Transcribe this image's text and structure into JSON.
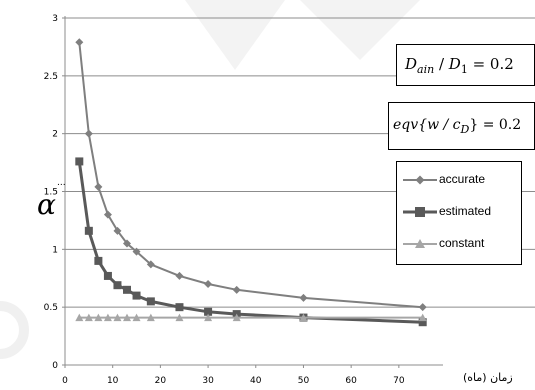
{
  "chart_data": {
    "type": "line",
    "xticks": [
      0,
      10,
      20,
      30,
      40,
      50,
      60,
      70
    ],
    "yticks": [
      "0",
      "0.5",
      "1",
      "1.5",
      "2",
      "2.5",
      "3"
    ],
    "xlim": [
      0,
      78
    ],
    "ylim": [
      0,
      3
    ],
    "grid": "horizontal",
    "legend_position": "right",
    "xlabel": "زمان (ماه)",
    "ylabel": "α",
    "ylabel_sup": "...",
    "annotations": [
      {
        "lhs": "D",
        "lhs_sub": "ain",
        "sep": " / ",
        "rhs": "D",
        "rhs_sub": "1",
        "value": " = 0.2"
      },
      {
        "lhs": "eqv{w / c",
        "lhs_sub": "D",
        "value": "} = 0.2"
      }
    ],
    "series": [
      {
        "name": "accurate",
        "color": "#7f7f7f",
        "marker": "diamond",
        "x": [
          3,
          5,
          7,
          9,
          11,
          13,
          15,
          18,
          24,
          30,
          36,
          50,
          75
        ],
        "y": [
          2.79,
          2.0,
          1.54,
          1.3,
          1.16,
          1.05,
          0.98,
          0.87,
          0.77,
          0.7,
          0.65,
          0.58,
          0.5
        ]
      },
      {
        "name": "estimated",
        "color": "#595959",
        "marker": "square",
        "x": [
          3,
          5,
          7,
          9,
          11,
          13,
          15,
          18,
          24,
          30,
          36,
          50,
          75
        ],
        "y": [
          1.76,
          1.16,
          0.9,
          0.77,
          0.69,
          0.65,
          0.6,
          0.55,
          0.5,
          0.46,
          0.44,
          0.41,
          0.37
        ]
      },
      {
        "name": "constant",
        "color": "#a6a6a6",
        "marker": "triangle",
        "x": [
          3,
          5,
          7,
          9,
          11,
          13,
          15,
          18,
          24,
          30,
          36,
          50,
          75
        ],
        "y": [
          0.41,
          0.41,
          0.41,
          0.41,
          0.41,
          0.41,
          0.41,
          0.41,
          0.41,
          0.41,
          0.41,
          0.41,
          0.41
        ]
      }
    ]
  }
}
